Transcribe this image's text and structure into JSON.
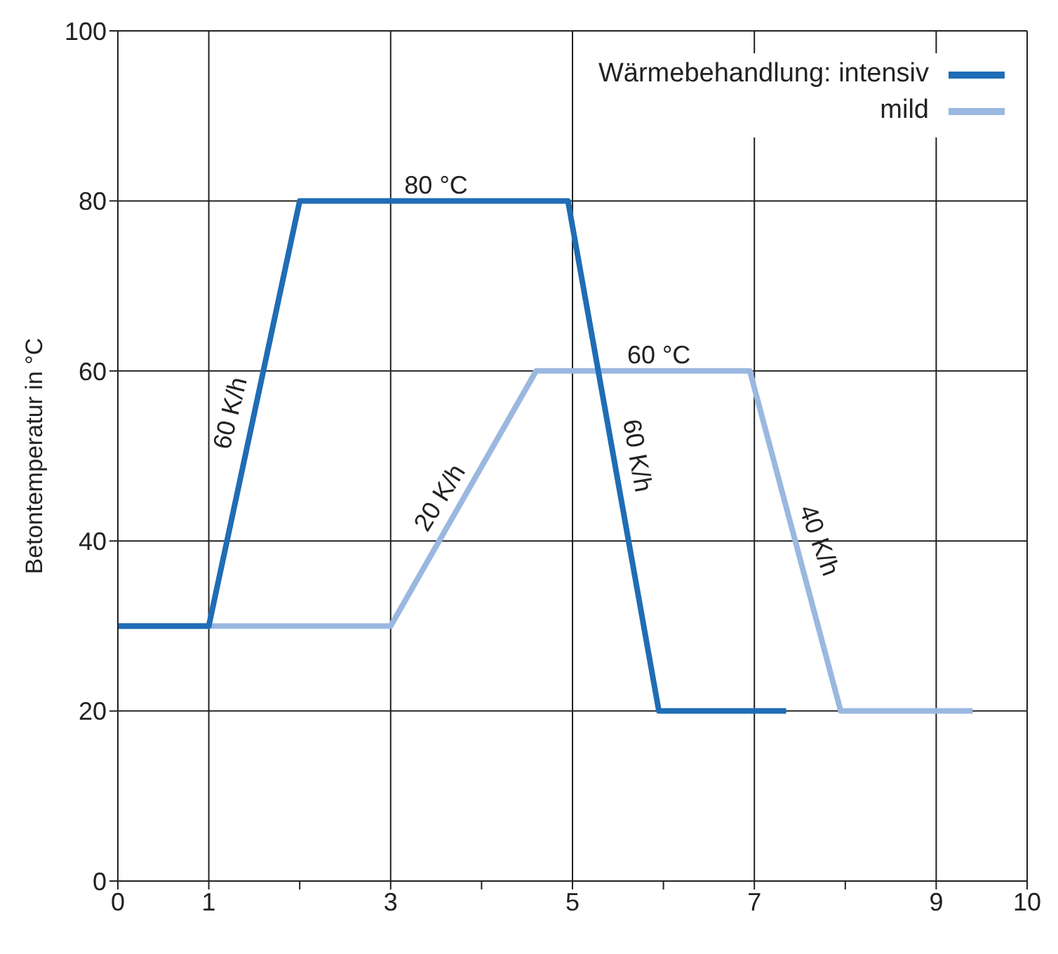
{
  "chart_data": {
    "type": "line",
    "ylabel": "Betontemperatur in °C",
    "legend_title": "Wärmebehandlung:",
    "series": [
      {
        "name": "intensiv",
        "color": "#1f6db5",
        "x": [
          0,
          1,
          2,
          4.95,
          5.95,
          7.35
        ],
        "values": [
          30,
          30,
          80,
          80,
          20,
          20
        ]
      },
      {
        "name": "mild",
        "color": "#9ab8e0",
        "x": [
          0,
          3,
          4.6,
          6.95,
          7.95,
          9.4
        ],
        "values": [
          30,
          30,
          60,
          60,
          20,
          20
        ]
      }
    ],
    "xlim": [
      0,
      10
    ],
    "xticks": [
      0,
      1,
      {
        "value": 2,
        "label": null
      },
      3,
      {
        "value": 4,
        "label": null
      },
      5,
      {
        "value": 6,
        "label": null
      },
      7,
      {
        "value": 8,
        "label": null
      },
      9,
      10
    ],
    "ylim": [
      0,
      100
    ],
    "yticks": [
      0,
      20,
      40,
      60,
      80,
      100
    ],
    "grid": true,
    "legend": "top right",
    "marker": "none",
    "line_style": "solid",
    "annotations": [
      {
        "text": "80 °C",
        "x": 3.5,
        "y": 80
      },
      {
        "text": "60 °C",
        "x": 5.95,
        "y": 60
      },
      {
        "text": "60 K/h",
        "x": 1.5,
        "y": 55
      },
      {
        "text": "20 K/h",
        "x": 3.8,
        "y": 45
      },
      {
        "text": "60 K/h",
        "x": 5.45,
        "y": 50
      },
      {
        "text": "40 K/h",
        "x": 7.45,
        "y": 40
      }
    ]
  }
}
